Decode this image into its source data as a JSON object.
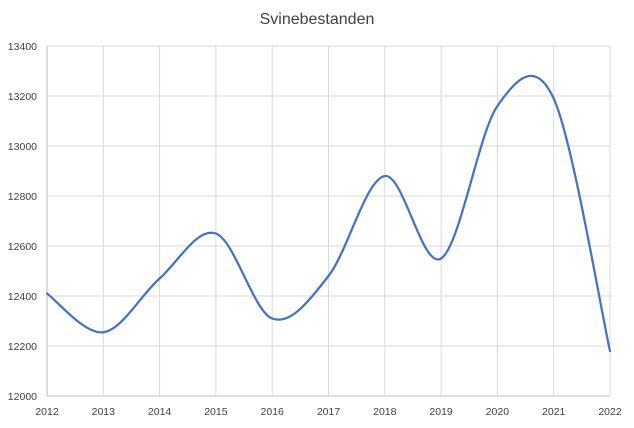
{
  "chart_data": {
    "type": "line",
    "title": "Svinebestanden",
    "xlabel": "",
    "ylabel": "",
    "x": [
      2012,
      2013,
      2014,
      2015,
      2016,
      2017,
      2018,
      2019,
      2020,
      2021,
      2022
    ],
    "series": [
      {
        "values": [
          12410,
          12255,
          12470,
          12650,
          12310,
          12480,
          12880,
          12550,
          13160,
          13190,
          12180
        ]
      }
    ],
    "x_ticks": [
      "2012",
      "2013",
      "2014",
      "2015",
      "2016",
      "2017",
      "2018",
      "2019",
      "2020",
      "2021",
      "2022"
    ],
    "y_ticks": [
      "12000",
      "12200",
      "12400",
      "12600",
      "12800",
      "13000",
      "13200",
      "13400"
    ],
    "ylim": [
      12000,
      13400
    ],
    "grid": true,
    "legend": "none",
    "line_color": "#4472c4",
    "smooth": true
  }
}
